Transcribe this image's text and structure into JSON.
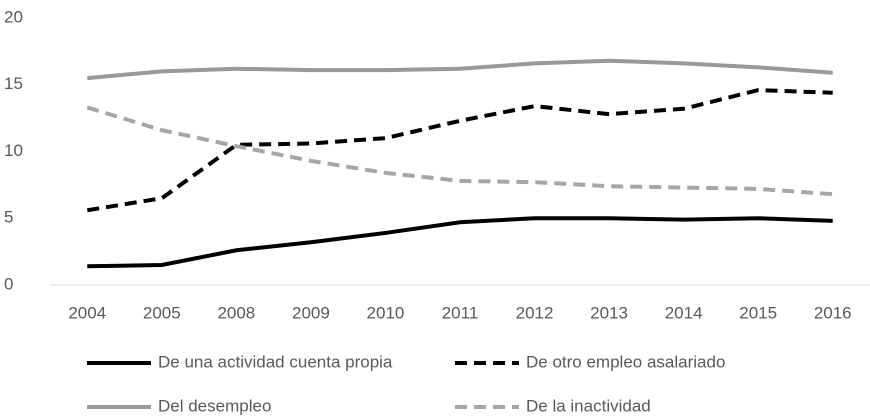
{
  "chart_data": {
    "type": "line",
    "categories": [
      "2004",
      "2005",
      "2008",
      "2009",
      "2010",
      "2011",
      "2012",
      "2013",
      "2014",
      "2015",
      "2016"
    ],
    "series": [
      {
        "name": "De una actividad cuenta propia",
        "color": "#000000",
        "dashed": false,
        "values": [
          1.4,
          1.5,
          2.6,
          3.2,
          3.9,
          4.7,
          5.0,
          5.0,
          4.9,
          5.0,
          4.8
        ]
      },
      {
        "name": "De otro empleo asalariado",
        "color": "#000000",
        "dashed": true,
        "values": [
          5.6,
          6.5,
          10.5,
          10.6,
          11.0,
          12.3,
          13.4,
          12.8,
          13.2,
          14.6,
          14.4
        ]
      },
      {
        "name": "Del desempleo",
        "color": "#999999",
        "dashed": false,
        "values": [
          15.5,
          16.0,
          16.2,
          16.1,
          16.1,
          16.2,
          16.6,
          16.8,
          16.6,
          16.3,
          15.9
        ]
      },
      {
        "name": "De la inactividad",
        "color": "#a6a6a6",
        "dashed": true,
        "values": [
          13.3,
          11.6,
          10.4,
          9.3,
          8.4,
          7.8,
          7.7,
          7.4,
          7.3,
          7.2,
          6.8
        ]
      }
    ],
    "ylim": [
      0,
      20
    ],
    "yticks": [
      0,
      5,
      10,
      15,
      20
    ],
    "grid": false,
    "legend": "bottom"
  }
}
